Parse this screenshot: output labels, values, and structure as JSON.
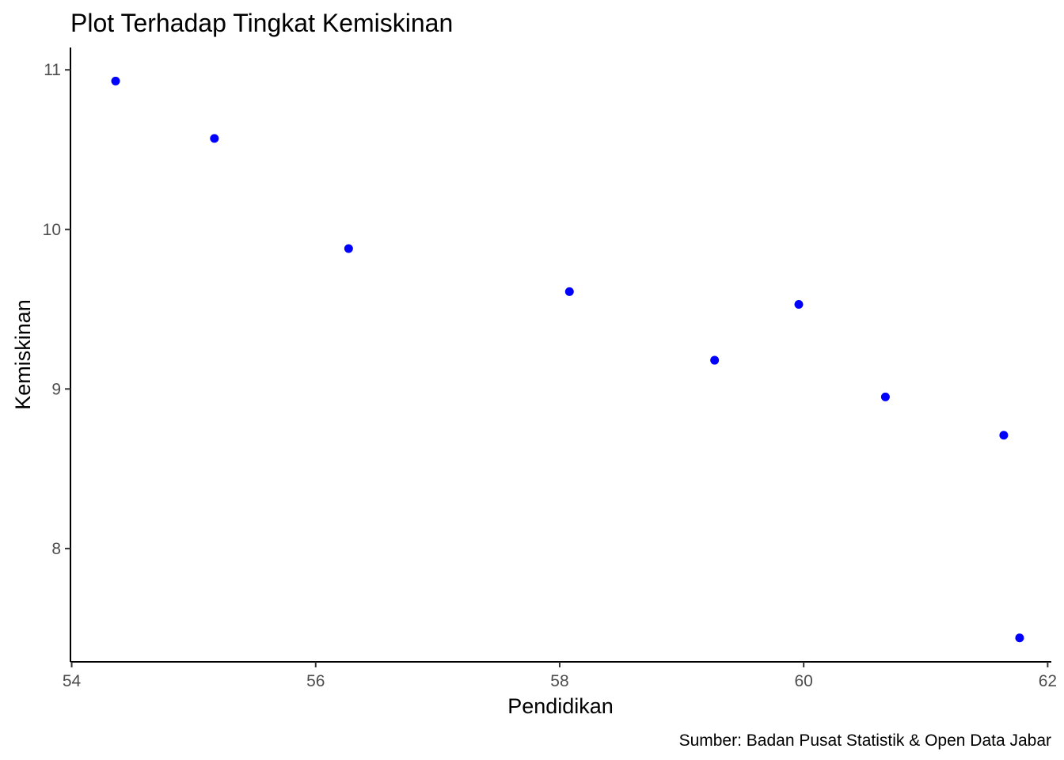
{
  "chart_data": {
    "type": "scatter",
    "title": "Plot Terhadap Tingkat Kemiskinan",
    "xlabel": "Pendidikan",
    "ylabel": "Kemiskinan",
    "caption": "Sumber:  Badan Pusat Statistik & Open Data Jabar",
    "xlim": [
      53.99,
      62.03
    ],
    "ylim": [
      7.29,
      11.14
    ],
    "x_ticks": [
      54,
      56,
      58,
      60,
      62
    ],
    "x_tick_labels": [
      "54",
      "56",
      "58",
      "60",
      "62"
    ],
    "y_ticks": [
      8,
      9,
      10,
      11
    ],
    "y_tick_labels": [
      "8",
      "9",
      "10",
      "11"
    ],
    "grid": false,
    "point_color": "#0000ff",
    "x": [
      54.36,
      55.17,
      56.27,
      58.08,
      59.27,
      59.96,
      60.67,
      61.64,
      61.77
    ],
    "y": [
      10.93,
      10.57,
      9.88,
      9.61,
      9.18,
      9.53,
      8.95,
      8.71,
      7.44
    ]
  }
}
